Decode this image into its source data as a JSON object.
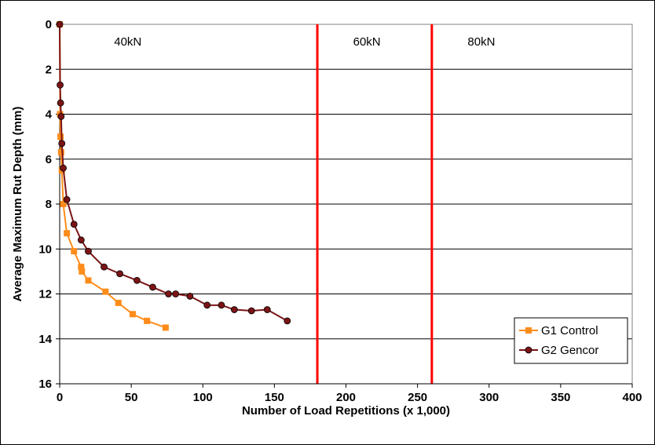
{
  "chart_data": {
    "type": "scatter",
    "xlabel": "Number of Load Repetitions (x 1,000)",
    "ylabel": "Average Maximum Rut Depth (mm)",
    "xlim": [
      0,
      400
    ],
    "ylim": [
      0,
      16
    ],
    "y_inverted": true,
    "x_ticks": [
      "0",
      "50",
      "100",
      "150",
      "200",
      "250",
      "300",
      "350",
      "400"
    ],
    "y_ticks": [
      "0",
      "2",
      "4",
      "6",
      "8",
      "10",
      "12",
      "14",
      "16"
    ],
    "grid": "horizontal",
    "legend_position": "bottom-right",
    "annotations": [
      {
        "text": "40kN",
        "x": 38
      },
      {
        "text": "60kN",
        "x": 205
      },
      {
        "text": "80kN",
        "x": 285
      }
    ],
    "vertical_lines": [
      {
        "x": 180,
        "color": "#ff0000"
      },
      {
        "x": 260,
        "color": "#ff0000"
      }
    ],
    "series": [
      {
        "name": "G1 Control",
        "color": "#ff8c1a",
        "marker": "square",
        "x": [
          0,
          0.3,
          0.6,
          1,
          1.5,
          2.5,
          5,
          10,
          15,
          15.5,
          20,
          32,
          41,
          51,
          61,
          74
        ],
        "y": [
          0,
          4.0,
          5.0,
          5.7,
          6.5,
          8.0,
          9.3,
          10.1,
          10.8,
          11.0,
          11.4,
          11.9,
          12.4,
          12.9,
          13.2,
          13.5
        ]
      },
      {
        "name": "G2 Gencor",
        "color": "#7b1416",
        "marker": "circle",
        "x": [
          0,
          0.3,
          0.6,
          1,
          1.5,
          2.5,
          5,
          10,
          15,
          20,
          31,
          42,
          54,
          65,
          76,
          81,
          91,
          103,
          113,
          122,
          134,
          145,
          159
        ],
        "y": [
          0,
          2.7,
          3.5,
          4.1,
          5.3,
          6.4,
          7.8,
          8.9,
          9.6,
          10.1,
          10.8,
          11.1,
          11.4,
          11.7,
          12.0,
          12.0,
          12.1,
          12.5,
          12.5,
          12.7,
          12.75,
          12.7,
          13.2
        ]
      }
    ]
  }
}
